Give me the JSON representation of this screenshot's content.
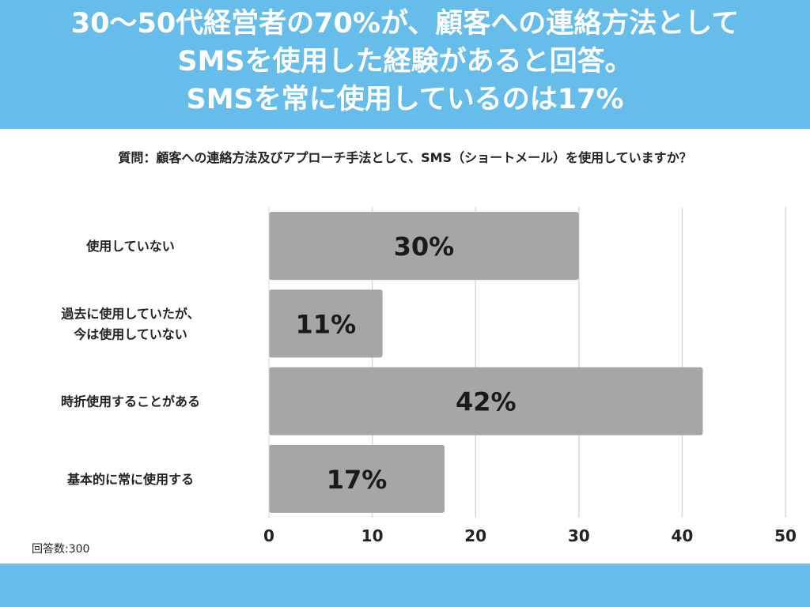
{
  "header": {
    "lines": [
      "30〜50代経営者の70%が、顧客への連絡方法として",
      "SMSを使用した経験があると回答。",
      "SMSを常に使用しているのは17%"
    ],
    "background": "#66bde9",
    "text_color": "#ffffff"
  },
  "question": "質問：顧客への連絡方法及びアプローチ手法として、SMS（ショートメール）を使用していますか？",
  "respondents": "回答数:300",
  "footer_color": "#66bde9",
  "chart_data": {
    "type": "bar",
    "orientation": "horizontal",
    "categories": [
      [
        "使用していない"
      ],
      [
        "過去に使用していたが、",
        "今は使用していない"
      ],
      [
        "時折使用することがある"
      ],
      [
        "基本的に常に使用する"
      ]
    ],
    "values": [
      30,
      11,
      42,
      17
    ],
    "data_labels": [
      "30%",
      "11%",
      "42%",
      "17%"
    ],
    "xlim": [
      0,
      50
    ],
    "xticks": [
      0,
      10,
      20,
      30,
      40,
      50
    ],
    "grid": true,
    "bar_color": "#a6a6a6",
    "grid_color": "#d9d9d9"
  }
}
